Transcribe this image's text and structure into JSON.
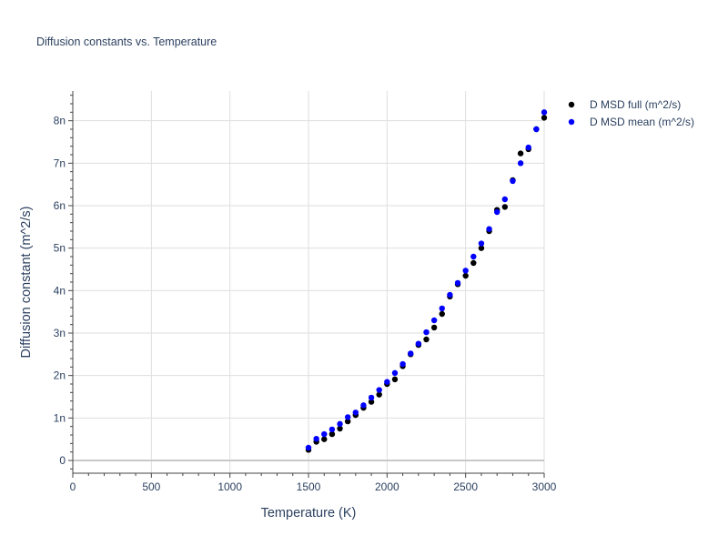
{
  "chart_data": {
    "type": "scatter",
    "title": "Diffusion constants vs. Temperature",
    "xlabel": "Temperature (K)",
    "ylabel": "Diffusion constant (m^2/s)",
    "xlim": [
      0,
      3000
    ],
    "ylim": [
      -0.3,
      8.7
    ],
    "x_ticks": [
      0,
      500,
      1000,
      1500,
      2000,
      2500,
      3000
    ],
    "x_tick_labels": [
      "0",
      "500",
      "1000",
      "1500",
      "2000",
      "2500",
      "3000"
    ],
    "y_ticks": [
      0,
      1,
      2,
      3,
      4,
      5,
      6,
      7,
      8
    ],
    "y_tick_labels": [
      "0",
      "1n",
      "2n",
      "3n",
      "4n",
      "5n",
      "6n",
      "7n",
      "8n"
    ],
    "y_unit_scale": "1e-9",
    "grid": true,
    "legend_position": "top-right",
    "series": [
      {
        "name": "D MSD full (m^2/s)",
        "color": "#000000",
        "x": [
          1500,
          1550,
          1600,
          1650,
          1700,
          1750,
          1800,
          1850,
          1900,
          1950,
          2000,
          2050,
          2100,
          2150,
          2200,
          2250,
          2300,
          2350,
          2400,
          2450,
          2500,
          2550,
          2600,
          2650,
          2700,
          2750,
          2800,
          2850,
          2900,
          2950,
          3000
        ],
        "y": [
          0.25,
          0.44,
          0.5,
          0.62,
          0.75,
          0.92,
          1.07,
          1.24,
          1.38,
          1.55,
          1.8,
          1.91,
          2.22,
          2.5,
          2.72,
          2.85,
          3.13,
          3.45,
          3.86,
          4.15,
          4.35,
          4.65,
          5.0,
          5.4,
          5.9,
          5.97,
          6.6,
          7.23,
          7.33,
          7.8,
          8.07
        ]
      },
      {
        "name": "D MSD mean (m^2/s)",
        "color": "#0000ff",
        "x": [
          1500,
          1550,
          1600,
          1650,
          1700,
          1750,
          1800,
          1850,
          1900,
          1950,
          2000,
          2050,
          2100,
          2150,
          2200,
          2250,
          2300,
          2350,
          2400,
          2450,
          2500,
          2550,
          2600,
          2650,
          2700,
          2750,
          2800,
          2850,
          2900,
          2950,
          3000
        ],
        "y": [
          0.3,
          0.51,
          0.62,
          0.73,
          0.86,
          1.02,
          1.13,
          1.3,
          1.48,
          1.66,
          1.85,
          2.06,
          2.27,
          2.52,
          2.75,
          3.02,
          3.3,
          3.58,
          3.9,
          4.18,
          4.47,
          4.8,
          5.11,
          5.45,
          5.85,
          6.15,
          6.58,
          7.0,
          7.37,
          7.8,
          8.2
        ]
      }
    ]
  }
}
